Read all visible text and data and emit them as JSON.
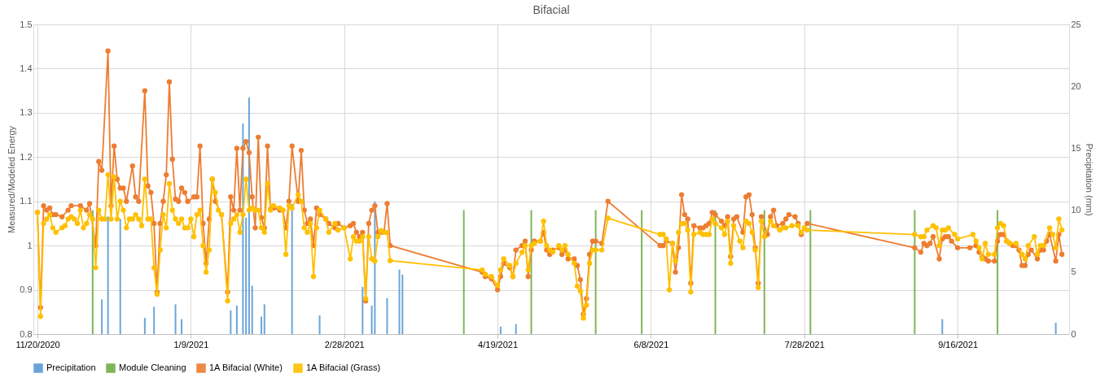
{
  "chart_data": {
    "type": "line",
    "title": "Bifacial",
    "ylabel": "Measured/Modeled Energy",
    "y2label": "Precipitation (mm)",
    "xlim": [
      "2020-11-20",
      "2021-10-21"
    ],
    "xticks": [
      {
        "value": "2020-11-20",
        "label": "11/20/2020"
      },
      {
        "value": "2021-01-09",
        "label": "1/9/2021"
      },
      {
        "value": "2021-02-28",
        "label": "2/28/2021"
      },
      {
        "value": "2021-04-19",
        "label": "4/19/2021"
      },
      {
        "value": "2021-06-08",
        "label": "6/8/2021"
      },
      {
        "value": "2021-07-28",
        "label": "7/28/2021"
      },
      {
        "value": "2021-09-16",
        "label": "9/16/2021"
      }
    ],
    "ylim": [
      0.8,
      1.5
    ],
    "yticks": [
      0.8,
      0.9,
      1,
      1.1,
      1.2,
      1.3,
      1.4,
      1.5
    ],
    "y2lim": [
      0,
      25
    ],
    "y2ticks": [
      0,
      5,
      10,
      15,
      20,
      25
    ],
    "grid": true,
    "legend": "bottom",
    "marker": "circle",
    "series": [
      {
        "name": "Precipitation",
        "type": "bar",
        "axis": "y2",
        "color": "#5b9bd5",
        "x": [
          "2020-12-11",
          "2020-12-13",
          "2020-12-17",
          "2020-12-25",
          "2020-12-28",
          "2021-01-04",
          "2021-01-06",
          "2021-01-22",
          "2021-01-24",
          "2021-01-26",
          "2021-01-27",
          "2021-01-28",
          "2021-01-29",
          "2021-02-01",
          "2021-02-02",
          "2021-02-11",
          "2021-02-20",
          "2021-03-06",
          "2021-03-09",
          "2021-03-10",
          "2021-03-14",
          "2021-03-18",
          "2021-03-19",
          "2021-04-20",
          "2021-04-25",
          "2021-09-11",
          "2021-10-18"
        ],
        "values": [
          2.8,
          9.5,
          9.3,
          1.3,
          2.2,
          2.4,
          1.2,
          1.9,
          2.3,
          17.0,
          9.4,
          19.1,
          3.9,
          1.4,
          2.4,
          10.5,
          1.5,
          3.8,
          2.3,
          10.7,
          2.9,
          5.2,
          4.8,
          0.6,
          0.8,
          1.2,
          0.9
        ]
      },
      {
        "name": "Module Cleaning",
        "type": "bar",
        "axis": "y2",
        "color": "#70ad47",
        "x": [
          "2020-12-08",
          "2021-04-08",
          "2021-04-30",
          "2021-05-21",
          "2021-06-05",
          "2021-06-29",
          "2021-07-15",
          "2021-07-30",
          "2021-09-02",
          "2021-09-29"
        ],
        "values": [
          10,
          10,
          10,
          10,
          10,
          10,
          10,
          10,
          10,
          10
        ]
      },
      {
        "name": "1A Bifacial (White)",
        "color": "#ed7d31",
        "x": [
          "2020-11-20",
          "2020-11-21",
          "2020-11-22",
          "2020-11-23",
          "2020-11-24",
          "2020-11-25",
          "2020-11-26",
          "2020-11-28",
          "2020-11-30",
          "2020-12-01",
          "2020-12-04",
          "2020-12-06",
          "2020-12-07",
          "2020-12-09",
          "2020-12-10",
          "2020-12-11",
          "2020-12-13",
          "2020-12-14",
          "2020-12-15",
          "2020-12-16",
          "2020-12-17",
          "2020-12-18",
          "2020-12-19",
          "2020-12-21",
          "2020-12-22",
          "2020-12-23",
          "2020-12-25",
          "2020-12-26",
          "2020-12-27",
          "2020-12-28",
          "2020-12-29",
          "2020-12-30",
          "2020-12-31",
          "2021-01-01",
          "2021-01-02",
          "2021-01-03",
          "2021-01-04",
          "2021-01-05",
          "2021-01-06",
          "2021-01-07",
          "2021-01-08",
          "2021-01-10",
          "2021-01-11",
          "2021-01-12",
          "2021-01-13",
          "2021-01-14",
          "2021-01-15",
          "2021-01-16",
          "2021-01-17",
          "2021-01-19",
          "2021-01-21",
          "2021-01-22",
          "2021-01-23",
          "2021-01-24",
          "2021-01-25",
          "2021-01-26",
          "2021-01-27",
          "2021-01-28",
          "2021-01-29",
          "2021-01-30",
          "2021-01-31",
          "2021-02-01",
          "2021-02-02",
          "2021-02-03",
          "2021-02-04",
          "2021-02-05",
          "2021-02-07",
          "2021-02-08",
          "2021-02-09",
          "2021-02-10",
          "2021-02-11",
          "2021-02-13",
          "2021-02-14",
          "2021-02-15",
          "2021-02-16",
          "2021-02-17",
          "2021-02-18",
          "2021-02-19",
          "2021-02-20",
          "2021-02-22",
          "2021-02-23",
          "2021-02-25",
          "2021-02-26",
          "2021-02-28",
          "2021-03-02",
          "2021-03-03",
          "2021-03-04",
          "2021-03-05",
          "2021-03-06",
          "2021-03-07",
          "2021-03-08",
          "2021-03-09",
          "2021-03-10",
          "2021-03-11",
          "2021-03-12",
          "2021-03-13",
          "2021-03-14",
          "2021-03-15",
          "2021-04-14",
          "2021-04-15",
          "2021-04-17",
          "2021-04-19",
          "2021-04-20",
          "2021-04-21",
          "2021-04-23",
          "2021-04-24",
          "2021-04-25",
          "2021-04-27",
          "2021-04-28",
          "2021-04-29",
          "2021-04-30",
          "2021-05-01",
          "2021-05-03",
          "2021-05-04",
          "2021-05-05",
          "2021-05-06",
          "2021-05-07",
          "2021-05-09",
          "2021-05-10",
          "2021-05-11",
          "2021-05-12",
          "2021-05-14",
          "2021-05-15",
          "2021-05-16",
          "2021-05-17",
          "2021-05-18",
          "2021-05-19",
          "2021-05-20",
          "2021-05-21",
          "2021-05-23",
          "2021-05-25",
          "2021-06-11",
          "2021-06-12",
          "2021-06-13",
          "2021-06-15",
          "2021-06-16",
          "2021-06-17",
          "2021-06-18",
          "2021-06-19",
          "2021-06-20",
          "2021-06-21",
          "2021-06-22",
          "2021-06-24",
          "2021-06-25",
          "2021-06-26",
          "2021-06-27",
          "2021-06-28",
          "2021-06-29",
          "2021-07-01",
          "2021-07-02",
          "2021-07-03",
          "2021-07-04",
          "2021-07-05",
          "2021-07-06",
          "2021-07-08",
          "2021-07-09",
          "2021-07-10",
          "2021-07-11",
          "2021-07-12",
          "2021-07-13",
          "2021-07-14",
          "2021-07-16",
          "2021-07-17",
          "2021-07-18",
          "2021-07-19",
          "2021-07-21",
          "2021-07-22",
          "2021-07-23",
          "2021-07-25",
          "2021-07-26",
          "2021-07-27",
          "2021-07-29",
          "2021-09-02",
          "2021-09-04",
          "2021-09-05",
          "2021-09-06",
          "2021-09-07",
          "2021-09-08",
          "2021-09-10",
          "2021-09-11",
          "2021-09-12",
          "2021-09-13",
          "2021-09-14",
          "2021-09-16",
          "2021-09-20",
          "2021-09-22",
          "2021-09-23",
          "2021-09-24",
          "2021-09-25",
          "2021-09-26",
          "2021-09-28",
          "2021-09-29",
          "2021-09-30",
          "2021-10-01",
          "2021-10-02",
          "2021-10-03",
          "2021-10-04",
          "2021-10-05",
          "2021-10-06",
          "2021-10-07",
          "2021-10-08",
          "2021-10-09",
          "2021-10-10",
          "2021-10-12",
          "2021-10-13",
          "2021-10-14",
          "2021-10-15",
          "2021-10-16",
          "2021-10-18",
          "2021-10-19",
          "2021-10-20"
        ],
        "values": [
          1.075,
          0.86,
          1.09,
          1.08,
          1.085,
          1.07,
          1.07,
          1.065,
          1.08,
          1.09,
          1.09,
          1.08,
          1.095,
          1.0,
          1.19,
          1.17,
          1.44,
          1.09,
          1.225,
          1.15,
          1.13,
          1.13,
          1.1,
          1.18,
          1.11,
          1.1,
          1.35,
          1.135,
          1.12,
          1.05,
          0.895,
          1.05,
          1.1,
          1.16,
          1.37,
          1.195,
          1.105,
          1.1,
          1.13,
          1.12,
          1.1,
          1.11,
          1.11,
          1.225,
          1.05,
          0.96,
          1.06,
          1.15,
          1.1,
          1.07,
          0.895,
          1.11,
          1.08,
          1.22,
          1.08,
          1.22,
          1.235,
          1.21,
          1.11,
          1.04,
          1.245,
          1.063,
          1.04,
          1.225,
          1.082,
          1.085,
          1.08,
          1.08,
          1.04,
          1.1,
          1.225,
          1.1,
          1.215,
          1.08,
          1.05,
          1.06,
          1.0,
          1.085,
          1.07,
          1.06,
          1.05,
          1.04,
          1.05,
          1.04,
          1.045,
          1.05,
          1.03,
          1.02,
          1.03,
          0.875,
          1.05,
          1.08,
          1.09,
          1.03,
          1.03,
          1.03,
          1.095,
          1.0,
          0.94,
          0.93,
          0.925,
          0.9,
          0.93,
          0.96,
          0.95,
          0.93,
          0.99,
          1.0,
          1.01,
          0.93,
          0.99,
          1.01,
          1.01,
          1.03,
          0.99,
          0.98,
          0.99,
          0.995,
          0.98,
          0.99,
          0.97,
          0.97,
          0.955,
          0.923,
          0.845,
          0.88,
          0.98,
          1.01,
          1.01,
          1.005,
          1.1,
          1.0,
          1.0,
          1.01,
          1.005,
          0.94,
          0.995,
          1.115,
          1.07,
          1.06,
          0.915,
          1.045,
          1.04,
          1.04,
          1.045,
          1.05,
          1.075,
          1.07,
          1.055,
          1.045,
          1.065,
          0.975,
          1.06,
          1.065,
          1.03,
          1.11,
          1.115,
          1.07,
          0.995,
          0.915,
          1.065,
          1.025,
          1.065,
          1.08,
          1.045,
          1.05,
          1.06,
          1.07,
          1.065,
          1.05,
          1.025,
          1.05,
          0.995,
          0.985,
          1.005,
          1.0,
          1.005,
          1.02,
          0.97,
          1.015,
          1.02,
          1.02,
          1.01,
          0.995,
          0.995,
          1.0,
          0.985,
          0.975,
          0.97,
          0.965,
          0.965,
          1.01,
          1.025,
          1.025,
          1.01,
          1.005,
          1.0,
          1.0,
          0.99,
          0.955,
          0.955,
          0.98,
          0.99,
          0.97,
          0.99,
          0.99,
          1.01,
          1.025,
          0.965,
          1.025,
          0.98
        ]
      },
      {
        "name": "1A Bifacial (Grass)",
        "color": "#ffc000",
        "x": [
          "2020-11-20",
          "2020-11-21",
          "2020-11-22",
          "2020-11-23",
          "2020-11-24",
          "2020-11-25",
          "2020-11-26",
          "2020-11-28",
          "2020-11-29",
          "2020-11-30",
          "2020-12-01",
          "2020-12-02",
          "2020-12-03",
          "2020-12-04",
          "2020-12-05",
          "2020-12-06",
          "2020-12-07",
          "2020-12-08",
          "2020-12-09",
          "2020-12-10",
          "2020-12-11",
          "2020-12-12",
          "2020-12-13",
          "2020-12-14",
          "2020-12-15",
          "2020-12-16",
          "2020-12-17",
          "2020-12-18",
          "2020-12-19",
          "2020-12-20",
          "2020-12-21",
          "2020-12-22",
          "2020-12-23",
          "2020-12-24",
          "2020-12-25",
          "2020-12-26",
          "2020-12-27",
          "2020-12-28",
          "2020-12-29",
          "2020-12-30",
          "2020-12-31",
          "2021-01-01",
          "2021-01-02",
          "2021-01-03",
          "2021-01-04",
          "2021-01-05",
          "2021-01-06",
          "2021-01-07",
          "2021-01-08",
          "2021-01-09",
          "2021-01-10",
          "2021-01-11",
          "2021-01-12",
          "2021-01-13",
          "2021-01-14",
          "2021-01-15",
          "2021-01-16",
          "2021-01-17",
          "2021-01-18",
          "2021-01-19",
          "2021-01-21",
          "2021-01-22",
          "2021-01-23",
          "2021-01-24",
          "2021-01-25",
          "2021-01-26",
          "2021-01-27",
          "2021-01-28",
          "2021-01-29",
          "2021-01-30",
          "2021-01-31",
          "2021-02-01",
          "2021-02-02",
          "2021-02-03",
          "2021-02-04",
          "2021-02-05",
          "2021-02-07",
          "2021-02-08",
          "2021-02-09",
          "2021-02-10",
          "2021-02-11",
          "2021-02-13",
          "2021-02-14",
          "2021-02-15",
          "2021-02-16",
          "2021-02-17",
          "2021-02-18",
          "2021-02-19",
          "2021-02-20",
          "2021-02-22",
          "2021-02-23",
          "2021-02-25",
          "2021-02-26",
          "2021-02-28",
          "2021-03-02",
          "2021-03-03",
          "2021-03-04",
          "2021-03-05",
          "2021-03-06",
          "2021-03-07",
          "2021-03-08",
          "2021-03-09",
          "2021-03-10",
          "2021-03-11",
          "2021-03-12",
          "2021-03-13",
          "2021-03-14",
          "2021-03-15",
          "2021-04-14",
          "2021-04-15",
          "2021-04-17",
          "2021-04-19",
          "2021-04-20",
          "2021-04-21",
          "2021-04-23",
          "2021-04-24",
          "2021-04-25",
          "2021-04-27",
          "2021-04-28",
          "2021-04-29",
          "2021-04-30",
          "2021-05-01",
          "2021-05-03",
          "2021-05-04",
          "2021-05-05",
          "2021-05-06",
          "2021-05-07",
          "2021-05-09",
          "2021-05-10",
          "2021-05-11",
          "2021-05-12",
          "2021-05-14",
          "2021-05-15",
          "2021-05-16",
          "2021-05-17",
          "2021-05-18",
          "2021-05-19",
          "2021-05-20",
          "2021-05-21",
          "2021-05-23",
          "2021-05-25",
          "2021-06-11",
          "2021-06-12",
          "2021-06-13",
          "2021-06-14",
          "2021-06-15",
          "2021-06-16",
          "2021-06-17",
          "2021-06-18",
          "2021-06-19",
          "2021-06-20",
          "2021-06-21",
          "2021-06-22",
          "2021-06-24",
          "2021-06-25",
          "2021-06-26",
          "2021-06-27",
          "2021-06-28",
          "2021-06-29",
          "2021-07-01",
          "2021-07-02",
          "2021-07-03",
          "2021-07-04",
          "2021-07-05",
          "2021-07-07",
          "2021-07-08",
          "2021-07-09",
          "2021-07-10",
          "2021-07-11",
          "2021-07-12",
          "2021-07-13",
          "2021-07-14",
          "2021-07-15",
          "2021-07-17",
          "2021-07-18",
          "2021-07-20",
          "2021-07-21",
          "2021-07-22",
          "2021-07-24",
          "2021-07-26",
          "2021-07-27",
          "2021-07-28",
          "2021-07-29",
          "2021-09-02",
          "2021-09-04",
          "2021-09-05",
          "2021-09-06",
          "2021-09-08",
          "2021-09-09",
          "2021-09-10",
          "2021-09-11",
          "2021-09-12",
          "2021-09-13",
          "2021-09-15",
          "2021-09-16",
          "2021-09-21",
          "2021-09-22",
          "2021-09-23",
          "2021-09-24",
          "2021-09-25",
          "2021-09-26",
          "2021-09-28",
          "2021-09-29",
          "2021-09-30",
          "2021-10-01",
          "2021-10-02",
          "2021-10-03",
          "2021-10-05",
          "2021-10-07",
          "2021-10-08",
          "2021-10-09",
          "2021-10-11",
          "2021-10-12",
          "2021-10-13",
          "2021-10-14",
          "2021-10-16",
          "2021-10-17",
          "2021-10-18",
          "2021-10-19",
          "2021-10-20"
        ],
        "values": [
          1.075,
          0.84,
          1.05,
          1.06,
          1.07,
          1.04,
          1.03,
          1.04,
          1.045,
          1.06,
          1.065,
          1.06,
          1.05,
          1.08,
          1.04,
          1.05,
          1.07,
          1.06,
          0.95,
          1.08,
          1.06,
          1.06,
          1.16,
          1.06,
          1.155,
          1.06,
          1.1,
          1.08,
          1.04,
          1.06,
          1.06,
          1.07,
          1.06,
          1.045,
          1.15,
          1.06,
          1.06,
          0.95,
          0.89,
          0.99,
          1.07,
          1.04,
          1.14,
          1.08,
          1.06,
          1.05,
          1.06,
          1.04,
          1.04,
          1.06,
          1.02,
          1.07,
          1.08,
          1.0,
          0.94,
          0.99,
          1.15,
          1.12,
          1.08,
          1.07,
          0.875,
          1.05,
          1.06,
          1.07,
          1.03,
          1.07,
          1.15,
          1.08,
          1.085,
          1.08,
          1.08,
          1.04,
          1.03,
          1.14,
          1.08,
          1.09,
          1.085,
          1.08,
          0.98,
          1.09,
          1.085,
          1.115,
          1.1,
          1.04,
          1.03,
          1.05,
          0.93,
          1.04,
          1.08,
          1.06,
          1.03,
          1.05,
          1.035,
          1.04,
          0.97,
          1.02,
          1.01,
          1.01,
          1.02,
          0.88,
          1.02,
          0.97,
          0.965,
          1.02,
          1.034,
          1.03,
          1.03,
          0.966,
          0.945,
          0.935,
          0.93,
          0.91,
          0.945,
          0.97,
          0.955,
          0.93,
          0.96,
          0.985,
          1.0,
          0.945,
          1.0,
          1.005,
          1.01,
          1.055,
          1.0,
          0.99,
          0.985,
          1.0,
          0.99,
          1.0,
          0.98,
          0.96,
          0.908,
          0.897,
          0.836,
          0.865,
          0.96,
          0.99,
          0.99,
          0.99,
          1.062,
          1.025,
          1.025,
          1.015,
          0.9,
          1.005,
          0.965,
          1.03,
          1.05,
          1.05,
          1.035,
          0.895,
          1.025,
          1.03,
          1.025,
          1.025,
          1.025,
          1.06,
          1.05,
          1.04,
          1.025,
          1.055,
          0.96,
          1.045,
          1.01,
          0.995,
          1.055,
          1.05,
          1.03,
          0.99,
          0.905,
          1.055,
          1.02,
          1.055,
          1.045,
          1.035,
          1.04,
          1.04,
          1.045,
          1.045,
          1.03,
          1.04,
          1.035,
          1.025,
          1.02,
          1.02,
          1.035,
          1.045,
          1.04,
          1.0,
          1.035,
          1.035,
          1.04,
          1.025,
          1.015,
          1.025,
          1.01,
          0.995,
          0.97,
          1.005,
          0.98,
          0.98,
          1.04,
          1.05,
          1.045,
          1.01,
          1.005,
          1.005,
          0.98,
          0.97,
          1.0,
          1.02,
          0.98,
          1.0,
          1.0,
          1.04,
          1.025,
          0.995,
          1.06,
          1.035
        ]
      }
    ]
  }
}
